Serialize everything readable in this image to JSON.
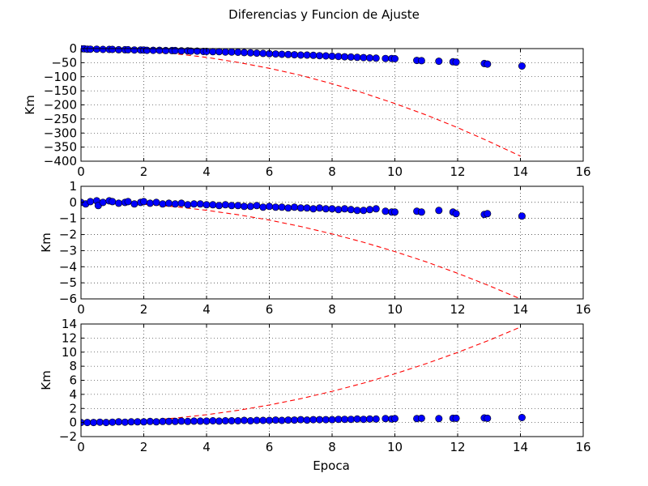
{
  "figure": {
    "title": "Diferencias y Funcion de Ajuste",
    "xlabel": "Epoca"
  },
  "colors": {
    "point_fill": "#0000ff",
    "point_edge": "#000000",
    "fit_line": "#ff0000",
    "grid": "#000000",
    "axes": "#000000"
  },
  "chart_data": [
    {
      "type": "scatter",
      "ylabel": "Km",
      "xlim": [
        0,
        16
      ],
      "ylim": [
        -400,
        0
      ],
      "xticks": [
        0,
        2,
        4,
        6,
        8,
        10,
        12,
        14,
        16
      ],
      "yticks": [
        0,
        -50,
        -100,
        -150,
        -200,
        -250,
        -300,
        -350,
        -400
      ],
      "grid": true,
      "series": [
        {
          "kind": "points",
          "x": [
            0.0,
            0.1,
            0.2,
            0.3,
            0.5,
            0.7,
            0.9,
            1.0,
            1.2,
            1.4,
            1.5,
            1.7,
            1.9,
            2.0,
            2.1,
            2.3,
            2.5,
            2.7,
            2.9,
            3.0,
            3.2,
            3.4,
            3.5,
            3.7,
            3.9,
            4.0,
            4.2,
            4.4,
            4.6,
            4.8,
            5.0,
            5.2,
            5.4,
            5.6,
            5.8,
            6.0,
            6.2,
            6.4,
            6.6,
            6.8,
            7.0,
            7.2,
            7.4,
            7.6,
            7.8,
            8.0,
            8.2,
            8.4,
            8.6,
            8.8,
            9.0,
            9.2,
            9.4,
            9.7,
            9.9,
            10.0,
            10.7,
            10.85,
            11.4,
            11.85,
            11.95,
            12.85,
            12.95,
            14.05
          ],
          "y": [
            -1,
            -1,
            -2,
            -2,
            -2,
            -3,
            -3,
            -3,
            -4,
            -4,
            -4,
            -5,
            -5,
            -5,
            -6,
            -6,
            -6,
            -7,
            -7,
            -7,
            -8,
            -8,
            -9,
            -9,
            -10,
            -10,
            -11,
            -11,
            -12,
            -12,
            -13,
            -14,
            -15,
            -16,
            -17,
            -18,
            -19,
            -20,
            -21,
            -22,
            -23,
            -23,
            -24,
            -25,
            -26,
            -27,
            -28,
            -29,
            -30,
            -31,
            -32,
            -33,
            -34,
            -35,
            -35,
            -36,
            -42,
            -43,
            -45,
            -47,
            -48,
            -53,
            -55,
            -62
          ]
        },
        {
          "kind": "fit",
          "style": "dashed",
          "x": [
            0,
            1,
            2,
            3,
            4,
            5,
            6,
            7,
            8,
            9,
            10,
            11,
            12,
            13,
            14
          ],
          "y": [
            0,
            -2,
            -8,
            -18,
            -31,
            -49,
            -70,
            -95,
            -125,
            -158,
            -195,
            -236,
            -281,
            -330,
            -382
          ]
        }
      ]
    },
    {
      "type": "scatter",
      "ylabel": "Km",
      "xlim": [
        0,
        16
      ],
      "ylim": [
        -6,
        1
      ],
      "xticks": [
        0,
        2,
        4,
        6,
        8,
        10,
        12,
        14,
        16
      ],
      "yticks": [
        1,
        0,
        -1,
        -2,
        -3,
        -4,
        -5,
        -6
      ],
      "grid": true,
      "series": [
        {
          "kind": "points",
          "x": [
            0.0,
            0.15,
            0.3,
            0.5,
            0.55,
            0.7,
            0.9,
            1.0,
            1.2,
            1.4,
            1.5,
            1.7,
            1.9,
            2.0,
            2.2,
            2.4,
            2.6,
            2.8,
            3.0,
            3.2,
            3.4,
            3.6,
            3.8,
            4.0,
            4.2,
            4.4,
            4.6,
            4.8,
            5.0,
            5.2,
            5.4,
            5.6,
            5.8,
            6.0,
            6.2,
            6.4,
            6.6,
            6.8,
            7.0,
            7.2,
            7.4,
            7.6,
            7.8,
            8.0,
            8.2,
            8.4,
            8.6,
            8.8,
            9.0,
            9.2,
            9.4,
            9.7,
            9.9,
            10.0,
            10.7,
            10.85,
            11.4,
            11.85,
            11.95,
            12.85,
            12.95,
            14.05
          ],
          "y": [
            0.0,
            -0.1,
            0.05,
            0.1,
            -0.2,
            0.0,
            0.1,
            0.05,
            -0.05,
            0.0,
            0.05,
            -0.1,
            0.0,
            0.05,
            -0.05,
            0.0,
            -0.1,
            -0.05,
            -0.1,
            -0.05,
            -0.15,
            -0.1,
            -0.1,
            -0.15,
            -0.15,
            -0.2,
            -0.15,
            -0.2,
            -0.2,
            -0.25,
            -0.25,
            -0.2,
            -0.3,
            -0.25,
            -0.3,
            -0.3,
            -0.35,
            -0.3,
            -0.35,
            -0.35,
            -0.4,
            -0.35,
            -0.4,
            -0.4,
            -0.45,
            -0.4,
            -0.45,
            -0.5,
            -0.5,
            -0.45,
            -0.4,
            -0.55,
            -0.6,
            -0.6,
            -0.55,
            -0.6,
            -0.5,
            -0.6,
            -0.7,
            -0.75,
            -0.7,
            -0.85
          ]
        },
        {
          "kind": "fit",
          "style": "dashed",
          "x": [
            0,
            1,
            2,
            3,
            4,
            5,
            6,
            7,
            8,
            9,
            10,
            11,
            12,
            13,
            14
          ],
          "y": [
            0,
            -0.03,
            -0.12,
            -0.27,
            -0.49,
            -0.77,
            -1.1,
            -1.5,
            -1.96,
            -2.48,
            -3.06,
            -3.7,
            -4.41,
            -5.18,
            -6.0
          ]
        }
      ]
    },
    {
      "type": "scatter",
      "ylabel": "Km",
      "xlabel": "Epoca",
      "xlim": [
        0,
        16
      ],
      "ylim": [
        -2,
        14
      ],
      "xticks": [
        0,
        2,
        4,
        6,
        8,
        10,
        12,
        14,
        16
      ],
      "yticks": [
        14,
        12,
        10,
        8,
        6,
        4,
        2,
        0,
        -2
      ],
      "grid": true,
      "series": [
        {
          "kind": "points",
          "x": [
            0.0,
            0.2,
            0.4,
            0.6,
            0.8,
            1.0,
            1.2,
            1.4,
            1.6,
            1.8,
            2.0,
            2.2,
            2.4,
            2.6,
            2.8,
            3.0,
            3.2,
            3.4,
            3.6,
            3.8,
            4.0,
            4.2,
            4.4,
            4.6,
            4.8,
            5.0,
            5.2,
            5.4,
            5.6,
            5.8,
            6.0,
            6.2,
            6.4,
            6.6,
            6.8,
            7.0,
            7.2,
            7.4,
            7.6,
            7.8,
            8.0,
            8.2,
            8.4,
            8.6,
            8.8,
            9.0,
            9.2,
            9.4,
            9.7,
            9.9,
            10.0,
            10.7,
            10.85,
            11.4,
            11.85,
            11.95,
            12.85,
            12.95,
            14.05
          ],
          "y": [
            0.0,
            0.0,
            0.0,
            0.05,
            0.0,
            0.05,
            0.1,
            0.05,
            0.1,
            0.1,
            0.1,
            0.15,
            0.1,
            0.15,
            0.15,
            0.15,
            0.2,
            0.15,
            0.2,
            0.2,
            0.2,
            0.25,
            0.2,
            0.25,
            0.25,
            0.25,
            0.3,
            0.25,
            0.3,
            0.3,
            0.3,
            0.35,
            0.3,
            0.35,
            0.35,
            0.4,
            0.35,
            0.4,
            0.4,
            0.4,
            0.4,
            0.45,
            0.45,
            0.45,
            0.5,
            0.45,
            0.5,
            0.5,
            0.55,
            0.5,
            0.55,
            0.55,
            0.6,
            0.55,
            0.6,
            0.6,
            0.65,
            0.6,
            0.7
          ]
        },
        {
          "kind": "fit",
          "style": "dashed",
          "x": [
            0,
            1,
            2,
            3,
            4,
            5,
            6,
            7,
            8,
            9,
            10,
            11,
            12,
            13,
            14
          ],
          "y": [
            0,
            0.07,
            0.28,
            0.62,
            1.11,
            1.73,
            2.49,
            3.39,
            4.43,
            5.6,
            6.92,
            8.37,
            9.96,
            11.69,
            13.56
          ]
        }
      ]
    }
  ]
}
